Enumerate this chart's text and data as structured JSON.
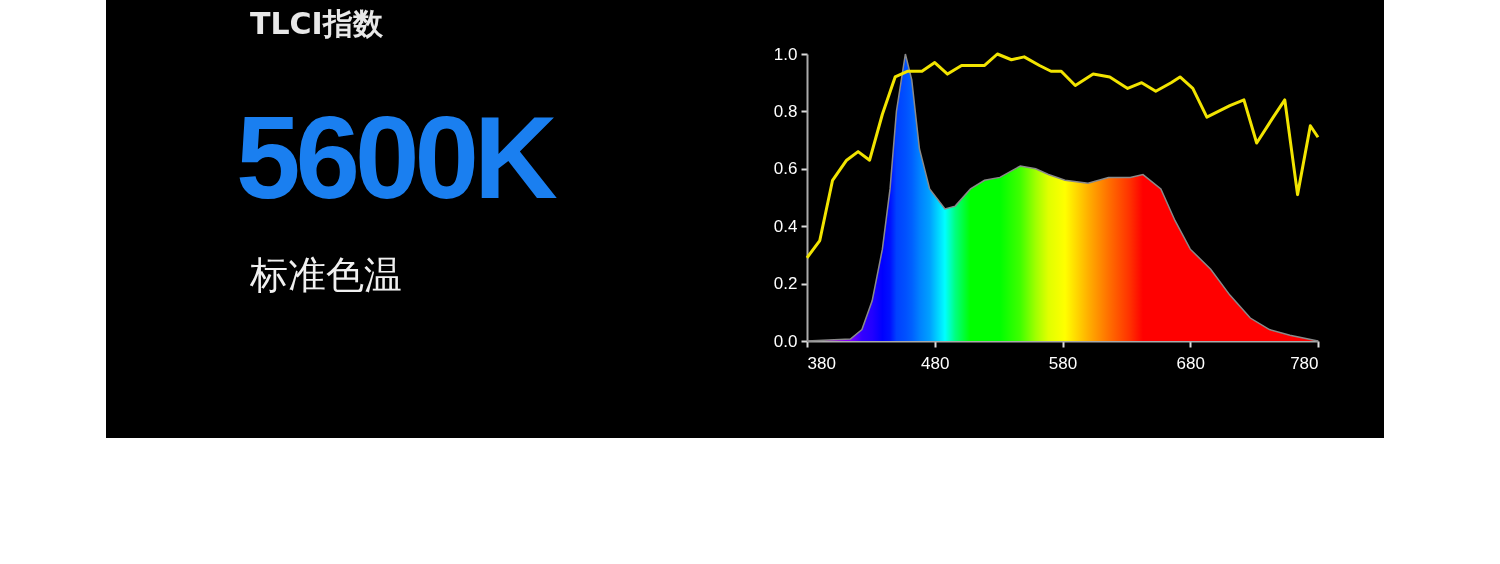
{
  "chart_data": {
    "type": "area",
    "title": "TLCI指数",
    "annotations": [
      "5600K",
      "标准色温"
    ],
    "xlim": [
      380,
      780
    ],
    "xticks": [
      380,
      480,
      580,
      680,
      780
    ],
    "ylim": [
      0,
      1
    ],
    "yticks": [
      {
        "value": 0,
        "label": "0.0"
      },
      {
        "value": 0.2,
        "label": "0.2"
      },
      {
        "value": 0.4,
        "label": "0.4"
      },
      {
        "value": 0.6,
        "label": "0.6"
      },
      {
        "value": 0.8,
        "label": "0.8"
      },
      {
        "value": 1,
        "label": "1.0"
      }
    ],
    "series": [
      {
        "x": [
          380,
          414,
          423,
          431,
          439,
          445,
          450,
          457,
          462,
          468,
          476,
          488,
          496,
          508,
          519,
          531,
          547,
          559,
          569,
          582,
          600,
          616,
          633,
          643,
          657,
          668,
          680,
          696,
          711,
          727,
          742,
          758,
          780
        ],
        "values": [
          0,
          0.007,
          0.04,
          0.14,
          0.32,
          0.53,
          0.8,
          1,
          0.91,
          0.67,
          0.53,
          0.46,
          0.47,
          0.53,
          0.56,
          0.57,
          0.61,
          0.6,
          0.58,
          0.56,
          0.55,
          0.57,
          0.57,
          0.58,
          0.53,
          0.42,
          0.32,
          0.25,
          0.16,
          0.08,
          0.04,
          0.02,
          0
        ],
        "colors": [
          "#cc00cc",
          "#7f00ff",
          "#3300ff",
          "#2200ff",
          "#0000ff",
          "#0010ff",
          "#0040ff",
          "#0050ff",
          "#0060ff",
          "#0080ff",
          "#00a0ff",
          "#00ffff",
          "#00ff80",
          "#00ff00",
          "#00ff00",
          "#00ff00",
          "#40ff00",
          "#a0ff00",
          "#e0ff00",
          "#ffff00",
          "#ffb000",
          "#ff7000",
          "#ff3000",
          "#ff0000",
          "#ff0000",
          "#ff0000",
          "#ff0000",
          "#ff0000",
          "#ff0000",
          "#ff0000",
          "#ff0000",
          "#ff0000",
          "#ff0000"
        ]
      },
      {
        "type": "line",
        "color": "#f2e400",
        "x": [
          380,
          390,
          400,
          411,
          420,
          429,
          439,
          449,
          459,
          470,
          480,
          490,
          501,
          519,
          529,
          540,
          550,
          562,
          571,
          579,
          590,
          604,
          617,
          631,
          642,
          653,
          665,
          672,
          682,
          693,
          711,
          722,
          732,
          745,
          754,
          764,
          774,
          780
        ],
        "values": [
          0.29,
          0.35,
          0.56,
          0.63,
          0.66,
          0.63,
          0.79,
          0.92,
          0.94,
          0.94,
          0.97,
          0.93,
          0.96,
          0.96,
          1,
          0.98,
          0.99,
          0.96,
          0.94,
          0.94,
          0.89,
          0.93,
          0.92,
          0.88,
          0.9,
          0.87,
          0.9,
          0.92,
          0.88,
          0.78,
          0.82,
          0.84,
          0.69,
          0.78,
          0.84,
          0.51,
          0.75,
          0.71
        ]
      }
    ]
  }
}
